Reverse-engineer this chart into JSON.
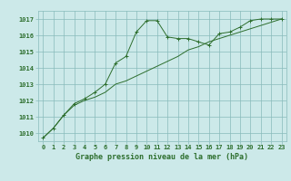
{
  "title": "Graphe pression niveau de la mer (hPa)",
  "background_color": "#cce9e9",
  "grid_color": "#88bbbb",
  "line_color": "#2d6e2d",
  "marker_color": "#2d6e2d",
  "xlim": [
    -0.5,
    23.5
  ],
  "ylim": [
    1009.5,
    1017.5
  ],
  "yticks": [
    1010,
    1011,
    1012,
    1013,
    1014,
    1015,
    1016,
    1017
  ],
  "xticks": [
    0,
    1,
    2,
    3,
    4,
    5,
    6,
    7,
    8,
    9,
    10,
    11,
    12,
    13,
    14,
    15,
    16,
    17,
    18,
    19,
    20,
    21,
    22,
    23
  ],
  "series1_x": [
    0,
    1,
    2,
    3,
    4,
    5,
    6,
    7,
    8,
    9,
    10,
    11,
    12,
    13,
    14,
    15,
    16,
    17,
    18,
    19,
    20,
    21,
    22,
    23
  ],
  "series1_y": [
    1009.7,
    1010.3,
    1011.1,
    1011.8,
    1012.1,
    1012.5,
    1013.0,
    1014.3,
    1014.7,
    1016.2,
    1016.9,
    1016.9,
    1015.9,
    1015.8,
    1015.8,
    1015.6,
    1015.4,
    1016.1,
    1016.2,
    1016.5,
    1016.9,
    1017.0,
    1017.0,
    1017.0
  ],
  "series2_x": [
    0,
    1,
    2,
    3,
    4,
    5,
    6,
    7,
    8,
    9,
    10,
    11,
    12,
    13,
    14,
    15,
    16,
    17,
    18,
    19,
    20,
    21,
    22,
    23
  ],
  "series2_y": [
    1009.7,
    1010.3,
    1011.1,
    1011.7,
    1012.0,
    1012.2,
    1012.5,
    1013.0,
    1013.2,
    1013.5,
    1013.8,
    1014.1,
    1014.4,
    1014.7,
    1015.1,
    1015.3,
    1015.6,
    1015.8,
    1016.0,
    1016.2,
    1016.4,
    1016.6,
    1016.8,
    1017.0
  ],
  "title_fontsize": 6.0,
  "tick_fontsize": 5.0
}
